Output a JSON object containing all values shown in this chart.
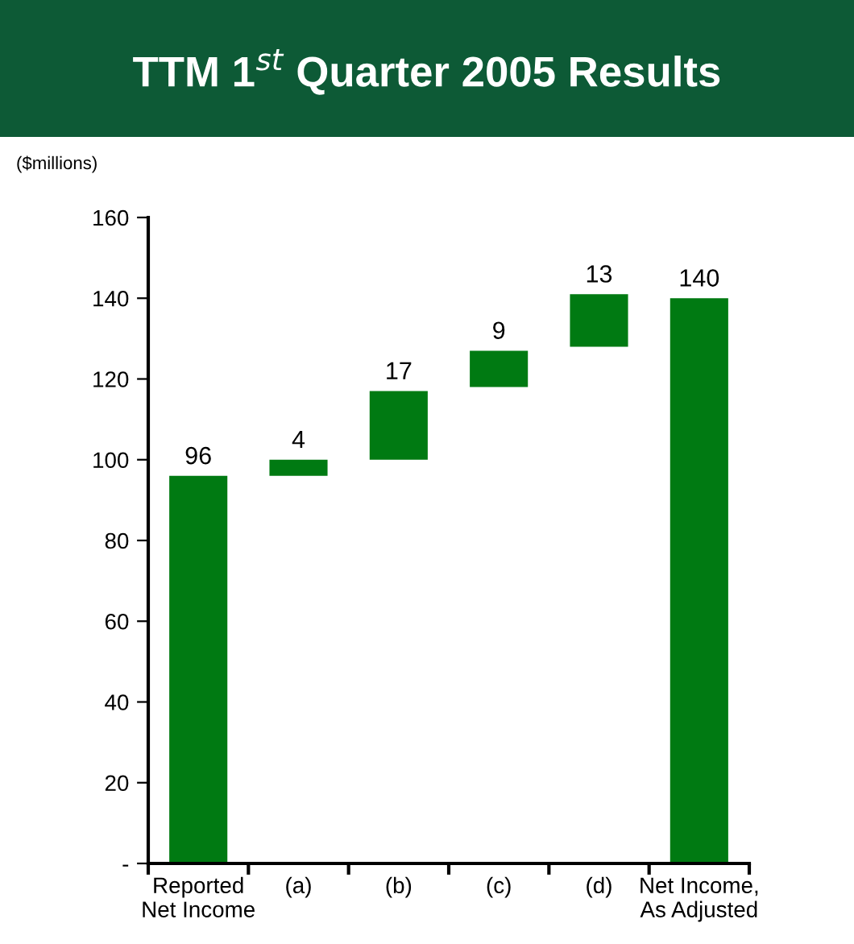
{
  "chart_data": {
    "type": "bar",
    "title": "TTM 1$^{st}$ Quarter 2005 Results",
    "ylabel": "($millions)",
    "categories": [
      "Reported\nNet Income",
      "(a)",
      "(b)",
      "(c)",
      "(d)",
      "Net Income,\nAs Adjusted"
    ],
    "values": [
      96,
      4,
      17,
      9,
      13,
      140
    ],
    "base": [
      0,
      96,
      100,
      118,
      128,
      0
    ],
    "color": "#007a12",
    "data_labels": true,
    "ylim": [
      0,
      160
    ],
    "yticks": [
      {
        "value": 0,
        "label": "-"
      },
      20,
      40,
      60,
      80,
      100,
      120,
      140,
      160
    ],
    "grid": false
  }
}
